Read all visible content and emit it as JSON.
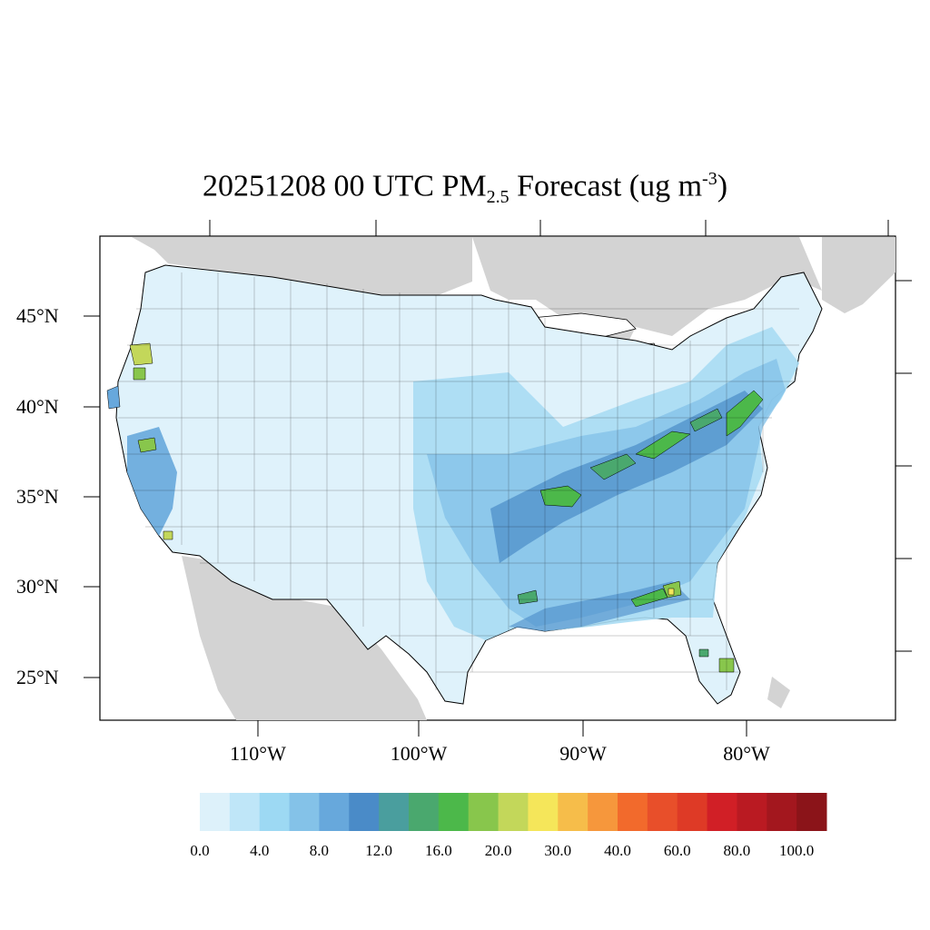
{
  "title": {
    "main": "20251208 00 UTC PM",
    "sub": "2.5",
    "tail": " Forecast (ug m",
    "sup": "-3",
    "close": ")"
  },
  "map": {
    "region": "CONUS counties",
    "background_land_color": "#d3d3d3",
    "water_color": "#ffffff",
    "border_color": "#000000",
    "lat_labels": [
      "45°N",
      "40°N",
      "35°N",
      "30°N",
      "25°N"
    ],
    "lon_labels": [
      "110°W",
      "100°W",
      "90°W",
      "80°W"
    ]
  },
  "colorbar": {
    "colors": [
      "#ddf1fa",
      "#bfe6f8",
      "#9dd9f3",
      "#84c2e8",
      "#67a8dc",
      "#4a8bc8",
      "#4a9e9e",
      "#4aa86e",
      "#4cb84a",
      "#88c64c",
      "#c3d75a",
      "#f5e65a",
      "#f6bd4a",
      "#f6973c",
      "#f26a2c",
      "#e84f2a",
      "#de3a26",
      "#d11f26",
      "#ba1a22",
      "#a3171e",
      "#8b1419"
    ],
    "labels": [
      "0.0",
      "4.0",
      "8.0",
      "12.0",
      "16.0",
      "20.0",
      "30.0",
      "40.0",
      "60.0",
      "80.0",
      "100.0"
    ]
  }
}
